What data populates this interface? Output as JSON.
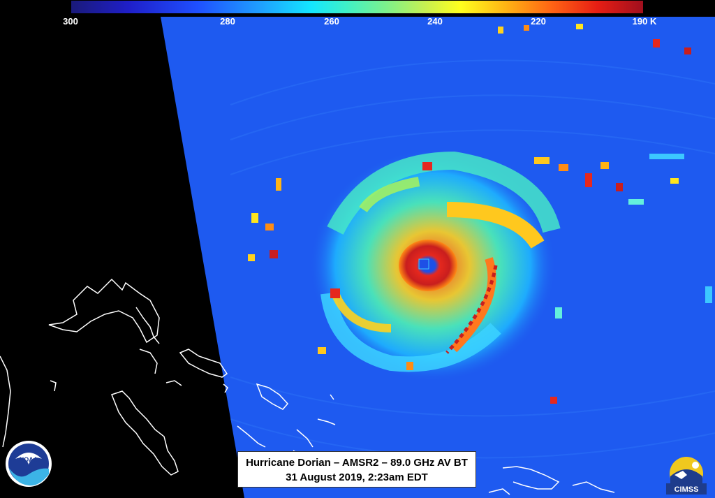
{
  "colorbar": {
    "ticks": [
      "300",
      "280",
      "260",
      "240",
      "220",
      "190 K"
    ]
  },
  "caption": {
    "line1": "Hurricane Dorian – AMSR2 – 89.0 GHz AV BT",
    "line2": "31 August 2019, 2:23am EDT"
  },
  "logos": {
    "left": "NOAA",
    "right": "CIMSS"
  }
}
